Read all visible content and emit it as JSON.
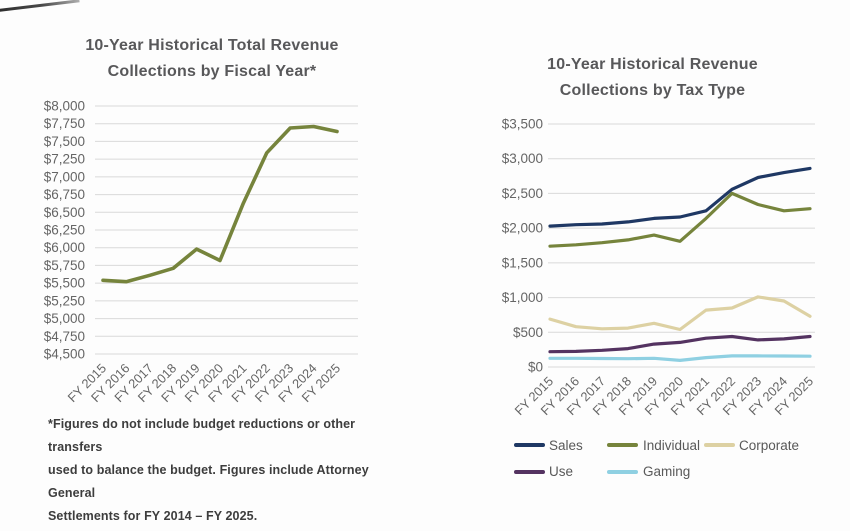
{
  "style": {
    "background": "#fdfdfd",
    "title_color": "#58585a",
    "axis_label_color": "#656565",
    "grid_color": "#d9d9d9",
    "footnote_color": "#3d3d3d",
    "legend_label_color": "#595959"
  },
  "chart_data": [
    {
      "type": "line",
      "title": "10-Year Historical Total Revenue Collections by Fiscal Year*",
      "title_lines": [
        "10-Year Historical Total Revenue",
        "Collections by Fiscal Year*"
      ],
      "categories": [
        "FY 2015",
        "FY 2016",
        "FY 2017",
        "FY 2018",
        "FY 2019",
        "FY 2020",
        "FY 2021",
        "FY 2022",
        "FY 2023",
        "FY 2024",
        "FY 2025"
      ],
      "series": [
        {
          "name": "Total Revenue",
          "color": "#76843c",
          "values": [
            5540,
            5520,
            5610,
            5710,
            5980,
            5820,
            6630,
            7340,
            7690,
            7710,
            7640
          ]
        }
      ],
      "xlabel": "",
      "ylabel": "",
      "ylim": [
        4500,
        8000
      ],
      "ytick_step": 250,
      "ytick_labels": [
        "$8,000",
        "$7,750",
        "$7,500",
        "$7,250",
        "$7,000",
        "$6,750",
        "$6,500",
        "$6,250",
        "$6,000",
        "$5,750",
        "$5,500",
        "$5,250",
        "$5,000",
        "$4,750",
        "$4,500"
      ],
      "grid": true,
      "legend": "none",
      "footnote": "*Figures do not include budget reductions or other transfers used to balance the budget. Figures include Attorney General Settlements for FY 2014 – FY 2025.",
      "footnote_lines": [
        "*Figures do not include budget reductions or other transfers",
        "used to balance the budget. Figures include Attorney General",
        "Settlements for FY 2014 – FY 2025."
      ]
    },
    {
      "type": "line",
      "title": "10-Year Historical Revenue Collections by Tax Type",
      "title_lines": [
        "10-Year Historical Revenue",
        "Collections by Tax Type"
      ],
      "categories": [
        "FY 2015",
        "FY 2016",
        "FY 2017",
        "FY 2018",
        "FY 2019",
        "FY 2020",
        "FY 2021",
        "FY 2022",
        "FY 2023",
        "FY 2024",
        "FY 2025"
      ],
      "series": [
        {
          "name": "Sales",
          "color": "#1f3864",
          "values": [
            2030,
            2050,
            2060,
            2090,
            2140,
            2160,
            2250,
            2560,
            2730,
            2800,
            2860
          ]
        },
        {
          "name": "Individual",
          "color": "#76843c",
          "values": [
            1740,
            1760,
            1790,
            1830,
            1900,
            1810,
            2140,
            2500,
            2340,
            2250,
            2280
          ]
        },
        {
          "name": "Corporate",
          "color": "#ddd1a3",
          "values": [
            690,
            580,
            550,
            560,
            630,
            540,
            820,
            850,
            1010,
            950,
            730
          ]
        },
        {
          "name": "Use",
          "color": "#543361",
          "values": [
            220,
            225,
            240,
            265,
            330,
            355,
            415,
            440,
            390,
            405,
            440
          ]
        },
        {
          "name": "Gaming",
          "color": "#8fd0e2",
          "values": [
            125,
            125,
            122,
            120,
            125,
            95,
            135,
            160,
            160,
            158,
            155
          ]
        }
      ],
      "xlabel": "",
      "ylabel": "",
      "ylim": [
        0,
        3500
      ],
      "ytick_step": 500,
      "ytick_labels": [
        "$3,500",
        "$3,000",
        "$2,500",
        "$2,000",
        "$1,500",
        "$1,000",
        "$500",
        "$0"
      ],
      "grid": true,
      "legend": "bottom",
      "legend_rows": [
        [
          "Sales",
          "Individual",
          "Corporate"
        ],
        [
          "Use",
          "Gaming"
        ]
      ]
    }
  ]
}
